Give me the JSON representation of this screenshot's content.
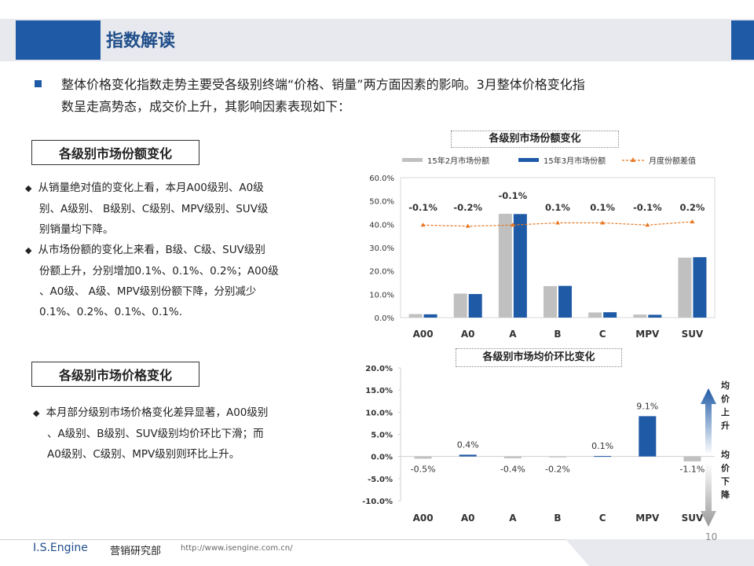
{
  "header": {
    "title": "指数解读"
  },
  "intro": {
    "text_line1": "整体价格变化指数走势主要受各级别终端“价格、销量”两方面因素的影响。3月整体价格变化指",
    "text_line2": "数呈走高势态，成交价上升，其影响因素表现如下："
  },
  "section1": {
    "title": "各级别市场份额变化",
    "bullets": [
      {
        "lines": [
          "从销量绝对值的变化上看，本月A00级别、A0级",
          "别、A级别、 B级别、C级别、MPV级别、SUV级",
          "别销量均下降。"
        ]
      },
      {
        "lines": [
          "从市场份额的变化上来看，B级、C级、SUV级别",
          "份额上升，分别增加0.1%、0.1%、0.2%；A00级",
          "、A0级、 A级、MPV级别份额下降，分别减少",
          "0.1%、0.2%、0.1%、0.1%."
        ]
      }
    ]
  },
  "section2": {
    "title": "各级别市场价格变化",
    "bullets": [
      {
        "lines": [
          "本月部分级别市场价格变化差异显著，A00级别",
          "、A级别、B级别、SUV级别均价环比下滑；而",
          "A0级别、C级别、MPV级别则环比上升。"
        ]
      }
    ]
  },
  "chart1": {
    "title": "各级别市场份额变化",
    "legend": [
      "15年2月市场份额",
      "15年3月市场份额",
      "月度份额差值"
    ]
  },
  "chart2": {
    "title": "各级别市场均价环比变化",
    "arrow_up_label": "均价上升",
    "arrow_down_label": "均价下降"
  },
  "chart_data": [
    {
      "type": "bar",
      "title": "各级别市场份额变化",
      "categories": [
        "A00",
        "A0",
        "A",
        "B",
        "C",
        "MPV",
        "SUV"
      ],
      "series": [
        {
          "name": "15年2月市场份额",
          "values": [
            1.5,
            10.3,
            44.5,
            13.5,
            2.2,
            1.3,
            25.7
          ],
          "color": "#c0c0c0"
        },
        {
          "name": "15年3月市场份额",
          "values": [
            1.4,
            10.1,
            44.4,
            13.6,
            2.3,
            1.2,
            25.9
          ],
          "color": "#1f5aa6"
        },
        {
          "name": "月度份额差值",
          "type": "line",
          "values": [
            -0.1,
            -0.2,
            -0.1,
            0.1,
            0.1,
            -0.1,
            0.2
          ],
          "labels": [
            "-0.1%",
            "-0.2%",
            "-0.1%",
            "0.1%",
            "0.1%",
            "-0.1%",
            "0.2%"
          ],
          "color": "#e87722"
        }
      ],
      "yticks": [
        "0.0%",
        "10.0%",
        "20.0%",
        "30.0%",
        "40.0%",
        "50.0%",
        "60.0%"
      ],
      "ylim": [
        0,
        60
      ],
      "legend_position": "top"
    },
    {
      "type": "bar",
      "title": "各级别市场均价环比变化",
      "categories": [
        "A00",
        "A0",
        "A",
        "B",
        "C",
        "MPV",
        "SUV"
      ],
      "values": [
        -0.5,
        0.4,
        -0.4,
        -0.2,
        0.1,
        9.1,
        -1.1
      ],
      "labels": [
        "-0.5%",
        "0.4%",
        "-0.4%",
        "-0.2%",
        "0.1%",
        "9.1%",
        "-1.1%"
      ],
      "positive_color": "#1f5aa6",
      "negative_color": "#c0c0c0",
      "yticks": [
        "-10.0%",
        "-5.0%",
        "0.0%",
        "5.0%",
        "10.0%",
        "15.0%",
        "20.0%"
      ],
      "ylim": [
        -10,
        20
      ]
    }
  ],
  "footer": {
    "brand": "I.S.Engine",
    "dept": "营销研究部",
    "url": "http://www.isengine.com.cn/",
    "page": "10"
  }
}
